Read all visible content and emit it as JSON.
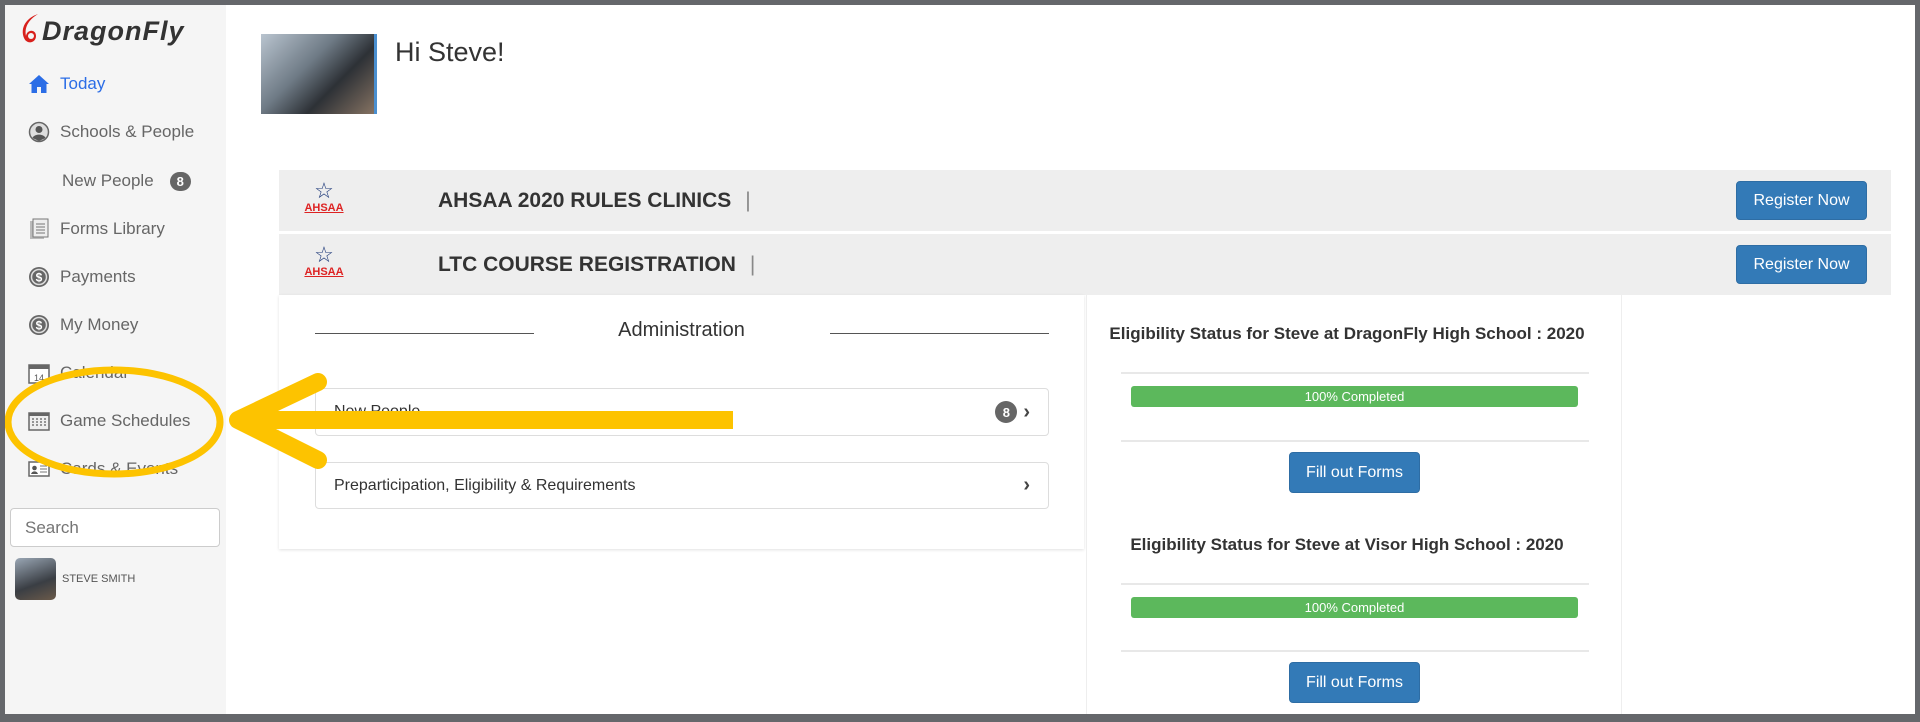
{
  "brand": {
    "name": "DragonFly"
  },
  "sidebar": {
    "items": [
      {
        "label": "Today",
        "icon": "home-icon",
        "active": true
      },
      {
        "label": "Schools & People",
        "icon": "user-circle-icon"
      },
      {
        "label": "New People",
        "badge": "8"
      },
      {
        "label": "Forms Library",
        "icon": "document-icon"
      },
      {
        "label": "Payments",
        "icon": "dollar-icon"
      },
      {
        "label": "My Money",
        "icon": "dollar-icon"
      },
      {
        "label": "Calendar",
        "icon": "calendar-icon"
      },
      {
        "label": "Game Schedules",
        "icon": "grid-calendar-icon"
      },
      {
        "label": "Cards & Events",
        "icon": "id-card-icon"
      }
    ],
    "search_placeholder": "Search",
    "user_name": "STEVE SMITH"
  },
  "greeting": "Hi Steve!",
  "banners": [
    {
      "logo_text": "AHSAA",
      "title": "AHSAA 2020 RULES CLINICS",
      "separator": "|",
      "button": "Register Now"
    },
    {
      "logo_text": "AHSAA",
      "title": "LTC COURSE REGISTRATION",
      "separator": "|",
      "button": "Register Now"
    }
  ],
  "administration": {
    "title": "Administration",
    "items": [
      {
        "label": "New People",
        "badge": "8"
      },
      {
        "label": "Preparticipation, Eligibility & Requirements"
      }
    ]
  },
  "eligibility": [
    {
      "title": "Eligibility Status for Steve at DragonFly High School : 2020",
      "progress": 100,
      "progress_label": "100% Completed",
      "button": "Fill out Forms"
    },
    {
      "title": "Eligibility Status for Steve at Visor High School : 2020",
      "progress": 100,
      "progress_label": "100% Completed",
      "button": "Fill out Forms"
    }
  ],
  "colors": {
    "accent": "#337ab7",
    "active_nav": "#2b6de6",
    "progress": "#5cb85c",
    "annotation": "#fdc300"
  }
}
